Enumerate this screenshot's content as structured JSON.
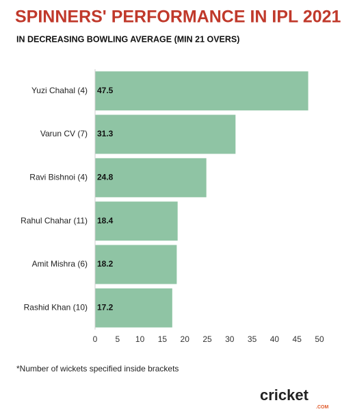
{
  "chart_data": {
    "type": "bar",
    "orientation": "horizontal",
    "title": "SPINNERS' PERFORMANCE IN IPL 2021",
    "subtitle": "IN DECREASING BOWLING AVERAGE (MIN 21 OVERS)",
    "categories": [
      "Yuzi Chahal (4)",
      "Varun CV (7)",
      "Ravi Bishnoi (4)",
      "Rahul Chahar (11)",
      "Amit Mishra (6)",
      "Rashid Khan (10)"
    ],
    "values": [
      47.5,
      31.3,
      24.8,
      18.4,
      18.2,
      17.2
    ],
    "color": "#8fc4a4",
    "xlim": [
      0,
      50
    ],
    "xticks": [
      0,
      5,
      10,
      15,
      20,
      25,
      30,
      35,
      40,
      45,
      50
    ],
    "footnote": "*Number of wickets specified inside brackets",
    "brand": {
      "name": "cricket",
      "suffix": ".COM"
    }
  }
}
